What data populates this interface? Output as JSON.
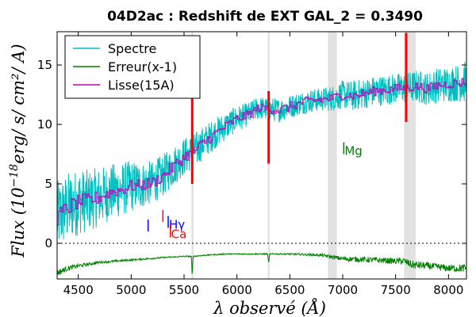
{
  "chart_data": {
    "type": "line",
    "title": "04D2ac : Redshift de EXT GAL_2 = 0.3490",
    "xlabel": "λ observé (Å)",
    "ylabel": "Flux (10^-18 erg/s/cm²/A)",
    "ylabel_parts": {
      "prefix": "Flux (10",
      "exp": "−18",
      "suffix": "erg/ s/ cm²/ A)"
    },
    "xlim": [
      4300,
      8170
    ],
    "ylim": [
      -3,
      17.8
    ],
    "xticks": [
      4500,
      5000,
      5500,
      6000,
      6500,
      7000,
      7500,
      8000
    ],
    "yticks": [
      0,
      5,
      10,
      15
    ],
    "zero_line": true,
    "legend": {
      "placement": "top-left",
      "entries": [
        {
          "name": "Spectre",
          "color": "#00bfbf"
        },
        {
          "name": "Erreur(x-1)",
          "color": "#008000"
        },
        {
          "name": "Lisse(15A)",
          "color": "#bf00bf"
        }
      ]
    },
    "shaded_bands": [
      {
        "x0": 5570,
        "x1": 5590
      },
      {
        "x0": 6292,
        "x1": 6310
      },
      {
        "x0": 6860,
        "x1": 6945
      },
      {
        "x0": 7580,
        "x1": 7690
      }
    ],
    "sky_lines_red": [
      {
        "x": 5577,
        "y0": 5.0,
        "y1": 13.2
      },
      {
        "x": 6300,
        "y0": 6.7,
        "y1": 12.8
      },
      {
        "x": 7600,
        "y0": 10.2,
        "y1": 17.7
      }
    ],
    "line_markers": [
      {
        "label": "",
        "x": 5160,
        "y0": 1.0,
        "y1": 2.0,
        "color": "#0000ff"
      },
      {
        "label": "",
        "x": 5300,
        "y0": 1.8,
        "y1": 2.8,
        "color": "#ff0000"
      },
      {
        "label": "Hγ",
        "x": 5350,
        "y0": 1.3,
        "y1": 2.3,
        "color": "#0000ff"
      },
      {
        "label": "Ca",
        "x": 5370,
        "y0": 0.5,
        "y1": 1.5,
        "color": "#ff0000"
      },
      {
        "label": "Mg",
        "x": 7010,
        "y0": 7.5,
        "y1": 8.5,
        "color": "#008000"
      }
    ],
    "spectre_x": [
      4300,
      4400,
      4500,
      4600,
      4700,
      4800,
      4900,
      5000,
      5100,
      5200,
      5300,
      5400,
      5500,
      5600,
      5700,
      5800,
      5900,
      6000,
      6100,
      6200,
      6300,
      6400,
      6500,
      6600,
      6700,
      6800,
      6900,
      7000,
      7100,
      7200,
      7300,
      7400,
      7500,
      7600,
      7700,
      7800,
      7900,
      8000,
      8100,
      8170
    ],
    "spectre_y": [
      2.2,
      3.0,
      3.5,
      3.6,
      3.9,
      4.3,
      4.5,
      4.8,
      4.9,
      5.1,
      5.7,
      6.5,
      7.3,
      7.8,
      8.6,
      9.3,
      9.9,
      10.5,
      10.8,
      11.4,
      11.3,
      11.2,
      11.5,
      11.8,
      12.0,
      12.1,
      12.2,
      12.5,
      12.4,
      12.6,
      12.8,
      12.9,
      13.0,
      13.1,
      13.2,
      13.0,
      13.3,
      13.4,
      13.5,
      13.6
    ],
    "spectre_noise": [
      3.0,
      3.0,
      2.8,
      2.6,
      2.5,
      2.4,
      2.3,
      2.2,
      2.0,
      1.8,
      1.8,
      1.7,
      1.6,
      1.5,
      1.4,
      1.3,
      1.2,
      1.1,
      1.0,
      1.0,
      1.0,
      1.0,
      1.0,
      1.0,
      1.0,
      1.0,
      1.1,
      1.2,
      1.3,
      1.3,
      1.3,
      1.3,
      1.3,
      1.3,
      1.4,
      1.4,
      1.5,
      1.5,
      1.6,
      1.8
    ],
    "lisse_noise": [
      0.7,
      0.7,
      0.6,
      0.6,
      0.6,
      0.5,
      0.5,
      0.5,
      0.5,
      0.5,
      0.5,
      0.5,
      0.5,
      0.5,
      0.5,
      0.4,
      0.4,
      0.4,
      0.4,
      0.4,
      0.4,
      0.4,
      0.4,
      0.4,
      0.4,
      0.4,
      0.4,
      0.4,
      0.4,
      0.4,
      0.4,
      0.4,
      0.4,
      0.4,
      0.4,
      0.4,
      0.4,
      0.4,
      0.4,
      0.4
    ],
    "erreur_x": [
      4300,
      4400,
      4500,
      4700,
      5000,
      5300,
      5500,
      5570,
      5577,
      5585,
      5700,
      5900,
      6100,
      6290,
      6300,
      6310,
      6500,
      6800,
      7000,
      7300,
      7500,
      7580,
      7650,
      7800,
      8000,
      8170
    ],
    "erreur_y": [
      -2.5,
      -2.1,
      -1.9,
      -1.6,
      -1.4,
      -1.2,
      -1.1,
      -1.1,
      -2.8,
      -1.1,
      -1.0,
      -0.9,
      -0.9,
      -0.9,
      -1.6,
      -0.9,
      -0.9,
      -1.0,
      -1.3,
      -1.4,
      -1.5,
      -1.5,
      -1.8,
      -1.9,
      -2.1,
      -2.1
    ],
    "erreur_noise": [
      0.3,
      0.2,
      0.15,
      0.1,
      0.08,
      0.06,
      0.05,
      0.05,
      0.0,
      0.05,
      0.05,
      0.05,
      0.05,
      0.05,
      0.0,
      0.05,
      0.06,
      0.12,
      0.2,
      0.25,
      0.25,
      0.3,
      0.35,
      0.3,
      0.3,
      0.35
    ]
  }
}
